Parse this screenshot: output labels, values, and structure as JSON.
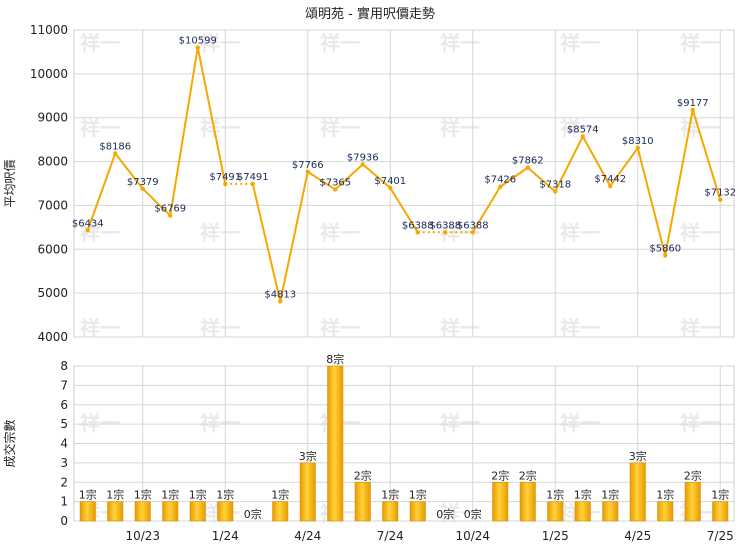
{
  "chart_data": [
    {
      "type": "line",
      "title": "頌明苑 - 實用呎價走勢",
      "ylabel": "平均呎價",
      "ylim": [
        4000,
        11000
      ],
      "yticks": [
        4000,
        5000,
        6000,
        7000,
        8000,
        9000,
        10000,
        11000
      ],
      "x_tick_labels": [
        "10/23",
        "1/24",
        "4/24",
        "7/24",
        "10/24",
        "1/25",
        "4/25",
        "7/25"
      ],
      "grid": true,
      "color": "#f5a800",
      "values": [
        6434,
        8186,
        7379,
        6769,
        10599,
        7491,
        7491,
        4813,
        7766,
        7365,
        7936,
        7401,
        6388,
        6388,
        6388,
        7426,
        7862,
        7318,
        8574,
        7442,
        8310,
        5860,
        9177,
        7132
      ],
      "labels": [
        "$6434",
        "$8186",
        "$7379",
        "$6769",
        "$10599",
        "$7491",
        "$7491",
        "$4813",
        "$7766",
        "$7365",
        "$7936",
        "$7401",
        "$6388",
        "$6388",
        "$6388",
        "$7426",
        "$7862",
        "$7318",
        "$8574",
        "$7442",
        "$8310",
        "$5860",
        "$9177",
        "$7132"
      ]
    },
    {
      "type": "bar",
      "ylabel": "成交宗數",
      "ylim": [
        0,
        8
      ],
      "yticks": [
        0,
        1,
        2,
        3,
        4,
        5,
        6,
        7,
        8
      ],
      "x_tick_labels": [
        "10/23",
        "1/24",
        "4/24",
        "7/24",
        "10/24",
        "1/25",
        "4/25",
        "7/25"
      ],
      "grid": true,
      "color": "#f0a810",
      "values": [
        1,
        1,
        1,
        1,
        1,
        1,
        0,
        1,
        3,
        8,
        2,
        1,
        1,
        0,
        0,
        2,
        2,
        1,
        1,
        1,
        3,
        1,
        2,
        1
      ],
      "labels": [
        "1宗",
        "1宗",
        "1宗",
        "1宗",
        "1宗",
        "1宗",
        "0宗",
        "1宗",
        "3宗",
        "8宗",
        "2宗",
        "1宗",
        "1宗",
        "0宗",
        "0宗",
        "2宗",
        "2宗",
        "1宗",
        "1宗",
        "1宗",
        "3宗",
        "1宗",
        "2宗",
        "1宗"
      ]
    }
  ],
  "watermark": "祥一"
}
